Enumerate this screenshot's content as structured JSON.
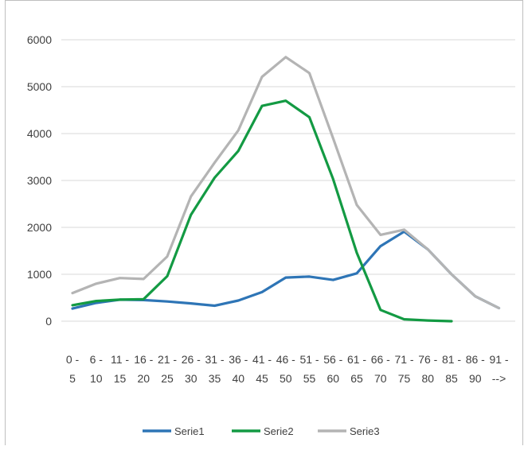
{
  "chart_data": {
    "type": "line",
    "categories": [
      [
        "0 -",
        "5"
      ],
      [
        "6 -",
        "10"
      ],
      [
        "11 -",
        "15"
      ],
      [
        "16 -",
        "20"
      ],
      [
        "21 -",
        "25"
      ],
      [
        "26 -",
        "30"
      ],
      [
        "31 -",
        "35"
      ],
      [
        "36 -",
        "40"
      ],
      [
        "41 -",
        "45"
      ],
      [
        "46 -",
        "50"
      ],
      [
        "51 -",
        "55"
      ],
      [
        "56 -",
        "60"
      ],
      [
        "61 -",
        "65"
      ],
      [
        "66 -",
        "70"
      ],
      [
        "71 -",
        "75"
      ],
      [
        "76 -",
        "80"
      ],
      [
        "81 -",
        "85"
      ],
      [
        "86 -",
        "90"
      ],
      [
        "91 -",
        "-->"
      ]
    ],
    "series": [
      {
        "name": "Serie1",
        "color": "#2e75b6",
        "values": [
          270,
          390,
          460,
          450,
          420,
          380,
          330,
          440,
          620,
          930,
          950,
          880,
          1020,
          1600,
          1910,
          1530,
          1000,
          530,
          280
        ]
      },
      {
        "name": "Serie2",
        "color": "#139a43",
        "values": [
          340,
          430,
          460,
          470,
          960,
          2270,
          3060,
          3630,
          4590,
          4700,
          4350,
          3030,
          1460,
          240,
          40,
          15,
          0,
          null,
          null
        ]
      },
      {
        "name": "Serie3",
        "color": "#b4b4b4",
        "values": [
          600,
          800,
          920,
          900,
          1380,
          2660,
          3380,
          4070,
          5210,
          5630,
          5290,
          3900,
          2480,
          1840,
          1950,
          1530,
          1000,
          530,
          280
        ]
      }
    ],
    "yticks": [
      "0",
      "1000",
      "2000",
      "3000",
      "4000",
      "5000",
      "6000"
    ],
    "ylim": [
      0,
      6000
    ],
    "grid": true,
    "legend": "bottom"
  }
}
